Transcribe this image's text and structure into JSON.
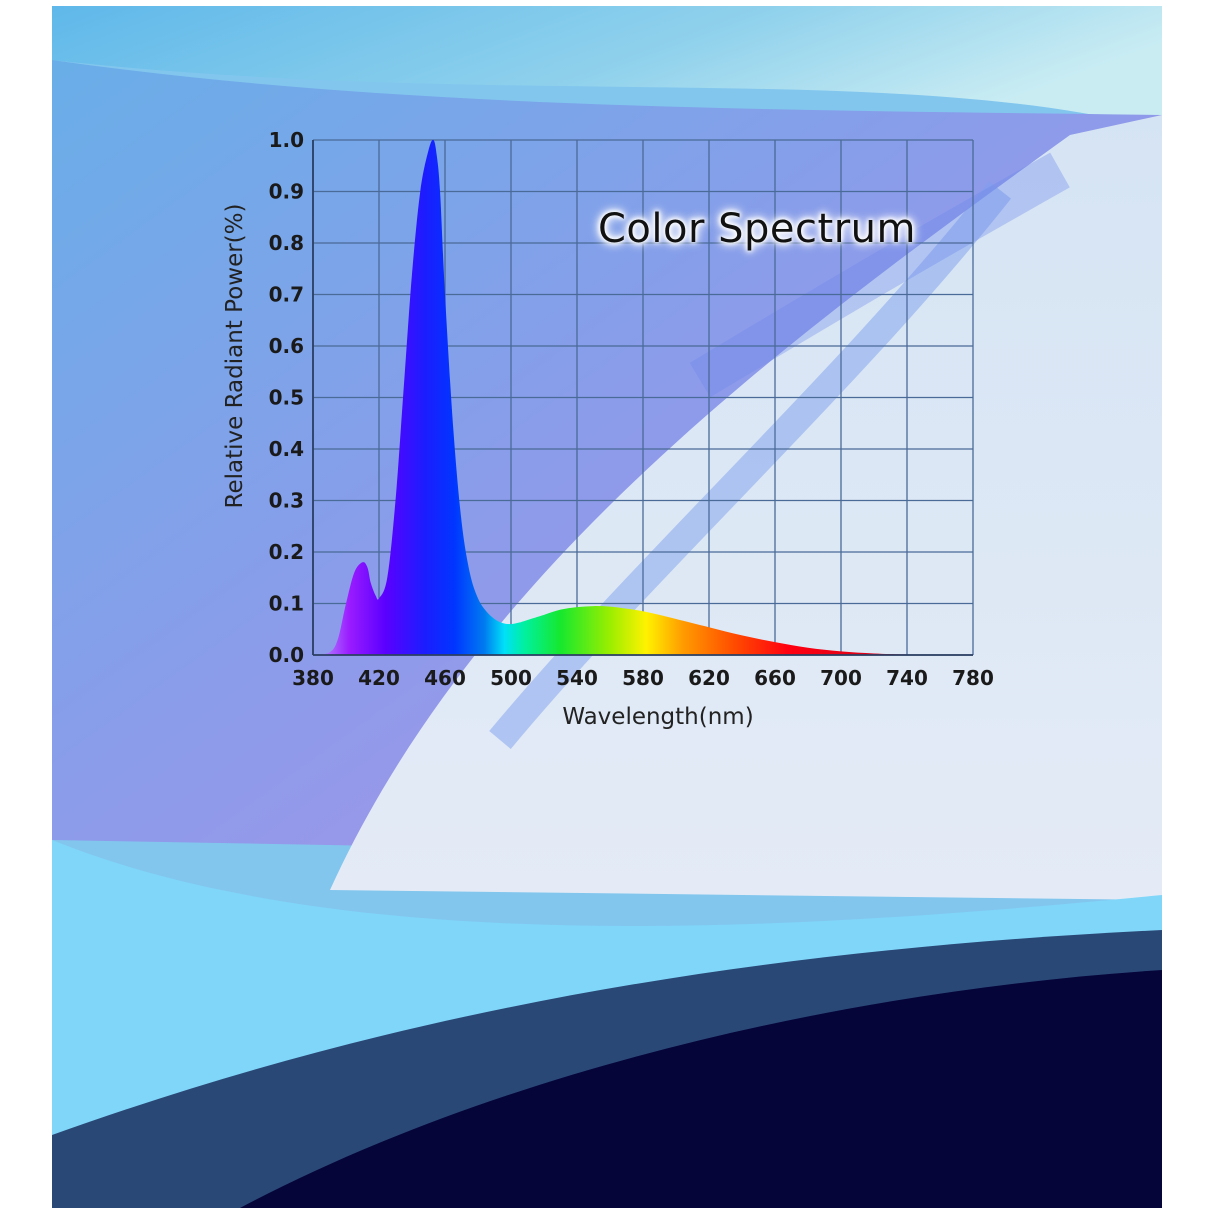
{
  "chart_data": {
    "type": "area",
    "title": "Color Spectrum",
    "xlabel": "Wavelength(nm)",
    "ylabel": "Relative Radiant Power(%)",
    "xlim": [
      380,
      780
    ],
    "ylim": [
      0,
      1.0
    ],
    "x_ticks": [
      380,
      420,
      460,
      500,
      540,
      580,
      620,
      660,
      700,
      740,
      780
    ],
    "y_ticks": [
      0.0,
      0.1,
      0.2,
      0.3,
      0.4,
      0.5,
      0.6,
      0.7,
      0.8,
      0.9,
      1.0
    ],
    "x_tick_labels": [
      "380",
      "420",
      "460",
      "500",
      "540",
      "580",
      "620",
      "660",
      "700",
      "740",
      "780"
    ],
    "y_tick_labels": [
      "0.0",
      "0.1",
      "0.2",
      "0.3",
      "0.4",
      "0.5",
      "0.6",
      "0.7",
      "0.8",
      "0.9",
      "1.0"
    ],
    "grid": true,
    "legend": "none",
    "series": [
      {
        "x": [
          380,
          390,
          395,
          400,
          405,
          410,
          413,
          415,
          418,
          420,
          425,
          430,
          435,
          440,
          445,
          450,
          453,
          455,
          457,
          460,
          465,
          470,
          475,
          480,
          485,
          490,
          495,
          500,
          505,
          510,
          520,
          530,
          540,
          550,
          560,
          570,
          580,
          590,
          600,
          620,
          640,
          660,
          680,
          700,
          720,
          740,
          750
        ],
        "y": [
          0.0,
          0.005,
          0.03,
          0.1,
          0.16,
          0.18,
          0.17,
          0.14,
          0.115,
          0.11,
          0.15,
          0.3,
          0.52,
          0.74,
          0.9,
          0.98,
          1.0,
          0.97,
          0.9,
          0.7,
          0.44,
          0.26,
          0.16,
          0.11,
          0.085,
          0.07,
          0.062,
          0.06,
          0.063,
          0.068,
          0.078,
          0.088,
          0.093,
          0.095,
          0.094,
          0.09,
          0.085,
          0.078,
          0.07,
          0.054,
          0.038,
          0.025,
          0.014,
          0.007,
          0.003,
          0.001,
          0.0
        ]
      }
    ]
  }
}
